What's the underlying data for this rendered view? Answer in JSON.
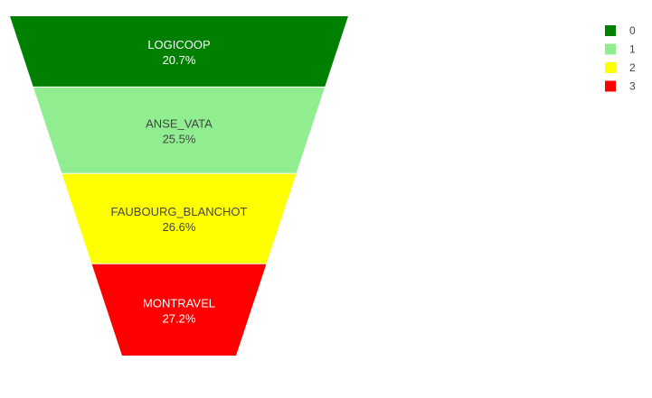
{
  "chart_data": {
    "type": "funnel",
    "categories": [
      "LOGICOOP",
      "ANSE_VATA",
      "FAUBOURG_BLANCHOT",
      "MONTRAVEL"
    ],
    "percent_labels": [
      "20.7%",
      "25.5%",
      "26.6%",
      "27.2%"
    ],
    "values": [
      20.7,
      25.5,
      26.6,
      27.2
    ],
    "colors": [
      "#008000",
      "#90EE90",
      "#FFFF00",
      "#FF0000"
    ],
    "label_colors": [
      "#ffffff",
      "#444444",
      "#444444",
      "#ffffff"
    ],
    "legend": {
      "placement": "top-right",
      "entries": [
        "0",
        "1",
        "2",
        "3"
      ]
    }
  }
}
